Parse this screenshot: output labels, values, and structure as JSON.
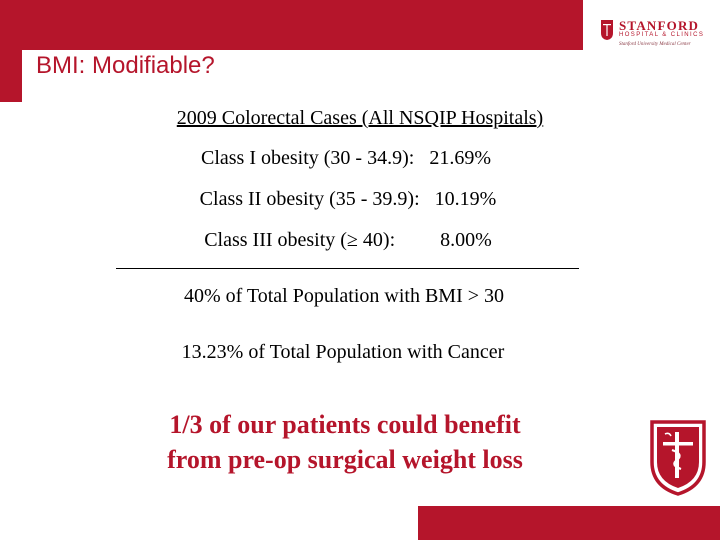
{
  "slide": {
    "title": "BMI: Modifiable?",
    "heading": "2009 Colorectal Cases (All NSQIP Hospitals)",
    "obesity_rows": [
      {
        "label": "Class I obesity (30 - 34.9):",
        "value": "21.69%"
      },
      {
        "label": "Class II obesity (35 - 39.9):",
        "value": "10.19%"
      },
      {
        "label": "Class III obesity (≥ 40):",
        "value": "8.00%"
      }
    ],
    "summary_bmi": "40% of Total Population with BMI > 30",
    "summary_cancer": "13.23% of Total Population with Cancer",
    "callout_line1": "1/3 of our patients could benefit",
    "callout_line2": "from pre-op surgical weight loss"
  },
  "logo": {
    "name": "STANFORD",
    "subtitle": "HOSPITAL & CLINICS",
    "tagline": "Stanford University Medical Center"
  },
  "colors": {
    "accent": "#b5152b",
    "text": "#000000",
    "background": "#ffffff"
  }
}
